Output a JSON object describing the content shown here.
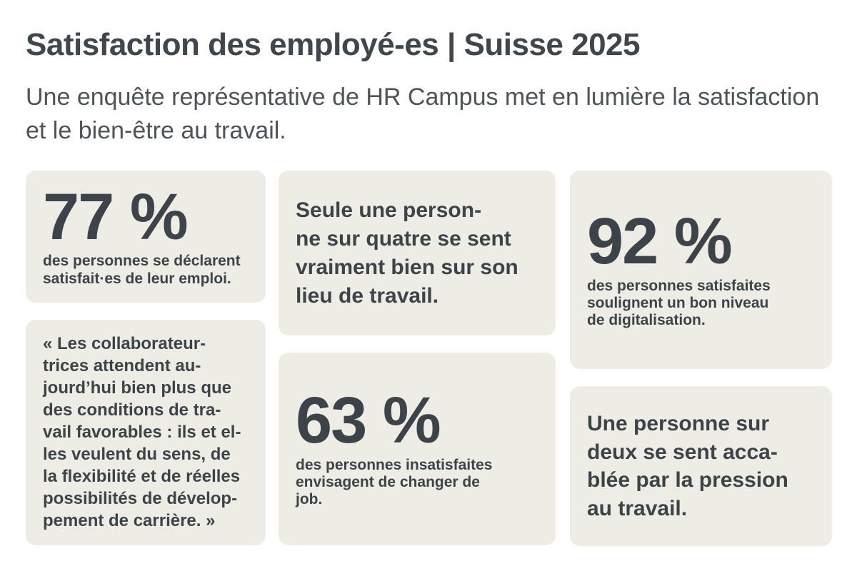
{
  "header": {
    "title": "Satisfaction des employé-es | Suisse 2025",
    "subtitle": "Une enquête représentative de HR Campus met en lumière la satisfaction et le bien-être au travail."
  },
  "cards": {
    "satisfied": {
      "value": "77 %",
      "caption": "des personnes se déclarent\nsatisfait·es de leur emploi."
    },
    "wellbeing": {
      "text": "Seule une person-\nne sur quatre se sent\nvraiment bien sur son\nlieu de travail."
    },
    "digitalisation": {
      "value": "92 %",
      "caption": "des personnes satisfaites\nsoulignent un bon niveau\nde digitalisation."
    },
    "quote": {
      "text": "« Les collaborateur-\ntrices attendent au-\njourd’hui bien plus que\ndes conditions de tra-\nvail favorables : ils et el-\nles veulent du sens, de\nla flexibilité et de réelles\npossibilités de dévelop-\npement de carrière. »"
    },
    "job_change": {
      "value": "63 %",
      "caption": "des personnes insatisfaites\nenvisagent de changer de\njob."
    },
    "pressure": {
      "text": "Une personne sur\ndeux se sent acca-\nblée par la pression\nau travail."
    }
  },
  "colors": {
    "page_bg": "#FFFFFF",
    "card_bg": "#EEEDE5",
    "ink": "#3C4449",
    "title": "#3F474C",
    "subtitle": "#4C545A"
  }
}
